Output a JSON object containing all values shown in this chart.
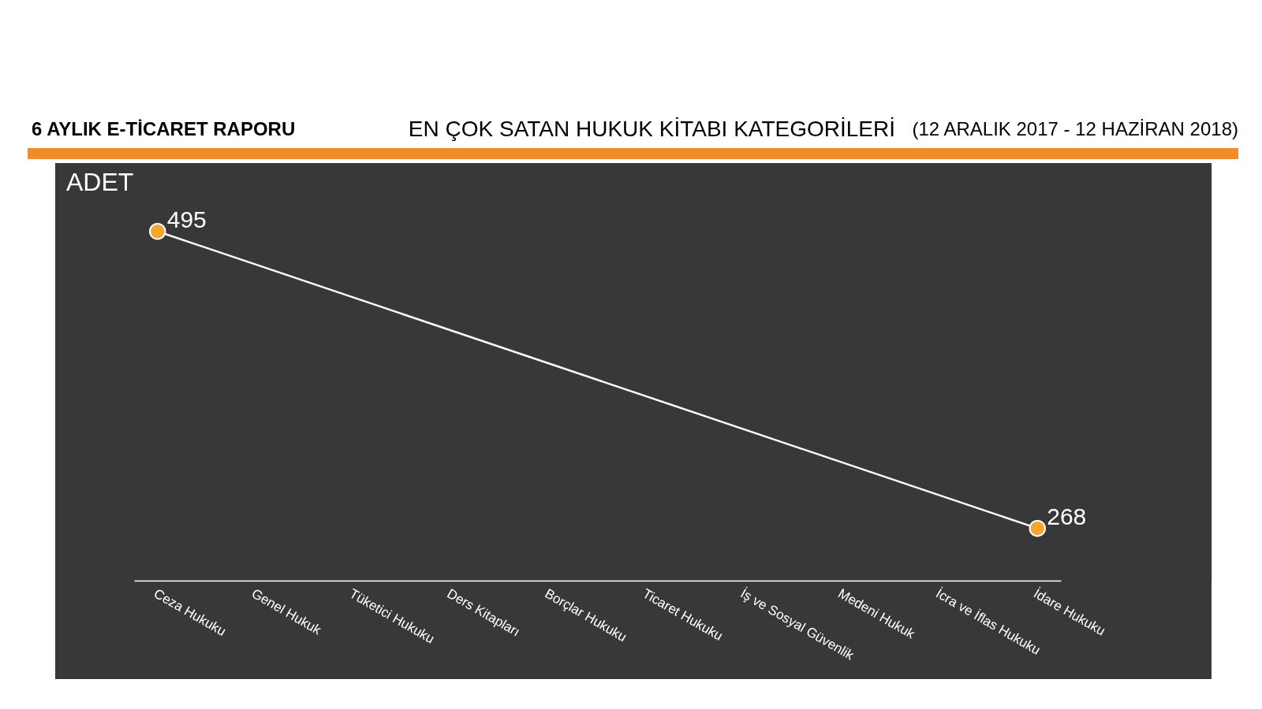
{
  "chart_data": {
    "type": "line",
    "title": "EN ÇOK SATAN HUKUK KİTABI KATEGORİLERİ",
    "subtitle": "(12 ARALIK 2017 - 12 HAZİRAN 2018)",
    "annotations": [
      "6 AYLIK E-TİCARET RAPORU"
    ],
    "ylabel": "ADET",
    "categories": [
      "Ceza Hukuku",
      "Genel Hukuk",
      "Tüketici Hukuku",
      "Ders Kitapları",
      "Borçlar Hukuku",
      "Ticaret Hukuku",
      "İş ve Sosyal Güvenlik",
      "Medeni Hukuk",
      "İcra ve İflas Hukuku",
      "İdare Hukuku"
    ],
    "series": [
      {
        "color": "#ffffff",
        "values": [
          495,
          null,
          null,
          null,
          null,
          null,
          null,
          null,
          null,
          268
        ]
      }
    ],
    "marker": "circle",
    "line_style": "solid",
    "data_labels": true,
    "tick_labels": "x"
  }
}
